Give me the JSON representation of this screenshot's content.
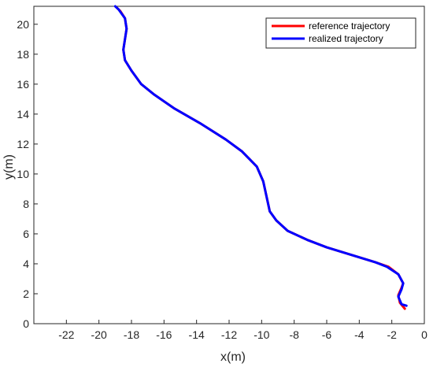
{
  "chart_data": {
    "type": "line",
    "title": "",
    "xlabel": "x(m)",
    "ylabel": "y(m)",
    "xlim": [
      -24,
      0
    ],
    "ylim": [
      0,
      21.2
    ],
    "xticks": [
      -22,
      -20,
      -18,
      -16,
      -14,
      -12,
      -10,
      -8,
      -6,
      -4,
      -2,
      0
    ],
    "yticks": [
      0,
      2,
      4,
      6,
      8,
      10,
      12,
      14,
      16,
      18,
      20
    ],
    "grid": false,
    "legend_position": "top-right",
    "series": [
      {
        "name": "reference trajectory",
        "color": "#ff0000",
        "points": [
          [
            -1.2,
            1.0
          ],
          [
            -1.5,
            1.4
          ],
          [
            -1.6,
            1.9
          ],
          [
            -1.4,
            2.4
          ],
          [
            -1.3,
            2.7
          ],
          [
            -1.6,
            3.3
          ],
          [
            -2.2,
            3.8
          ],
          [
            -3.0,
            4.1
          ],
          [
            -4.5,
            4.6
          ],
          [
            -6.0,
            5.1
          ],
          [
            -7.2,
            5.6
          ],
          [
            -8.4,
            6.2
          ],
          [
            -9.1,
            6.9
          ],
          [
            -9.5,
            7.5
          ],
          [
            -9.7,
            8.5
          ],
          [
            -9.9,
            9.5
          ],
          [
            -10.3,
            10.5
          ],
          [
            -11.2,
            11.5
          ],
          [
            -12.2,
            12.3
          ],
          [
            -13.8,
            13.4
          ],
          [
            -15.4,
            14.4
          ],
          [
            -16.6,
            15.3
          ],
          [
            -17.4,
            16.0
          ],
          [
            -18.0,
            16.9
          ],
          [
            -18.4,
            17.6
          ],
          [
            -18.5,
            18.3
          ],
          [
            -18.4,
            19.0
          ],
          [
            -18.3,
            19.7
          ],
          [
            -18.4,
            20.4
          ],
          [
            -18.7,
            20.9
          ],
          [
            -18.9,
            21.1
          ]
        ]
      },
      {
        "name": "realized trajectory",
        "color": "#0000ff",
        "points": [
          [
            -1.1,
            1.2
          ],
          [
            -1.4,
            1.3
          ],
          [
            -1.6,
            1.8
          ],
          [
            -1.4,
            2.3
          ],
          [
            -1.3,
            2.7
          ],
          [
            -1.6,
            3.3
          ],
          [
            -2.3,
            3.8
          ],
          [
            -3.0,
            4.1
          ],
          [
            -4.5,
            4.6
          ],
          [
            -6.0,
            5.1
          ],
          [
            -7.2,
            5.6
          ],
          [
            -8.4,
            6.2
          ],
          [
            -9.1,
            6.9
          ],
          [
            -9.5,
            7.5
          ],
          [
            -9.7,
            8.5
          ],
          [
            -9.9,
            9.5
          ],
          [
            -10.3,
            10.5
          ],
          [
            -11.2,
            11.5
          ],
          [
            -12.2,
            12.3
          ],
          [
            -13.8,
            13.4
          ],
          [
            -15.4,
            14.4
          ],
          [
            -16.6,
            15.3
          ],
          [
            -17.4,
            16.0
          ],
          [
            -18.0,
            16.9
          ],
          [
            -18.4,
            17.6
          ],
          [
            -18.5,
            18.3
          ],
          [
            -18.4,
            19.0
          ],
          [
            -18.3,
            19.7
          ],
          [
            -18.4,
            20.4
          ],
          [
            -18.8,
            21.0
          ],
          [
            -19.0,
            21.2
          ]
        ]
      }
    ]
  }
}
